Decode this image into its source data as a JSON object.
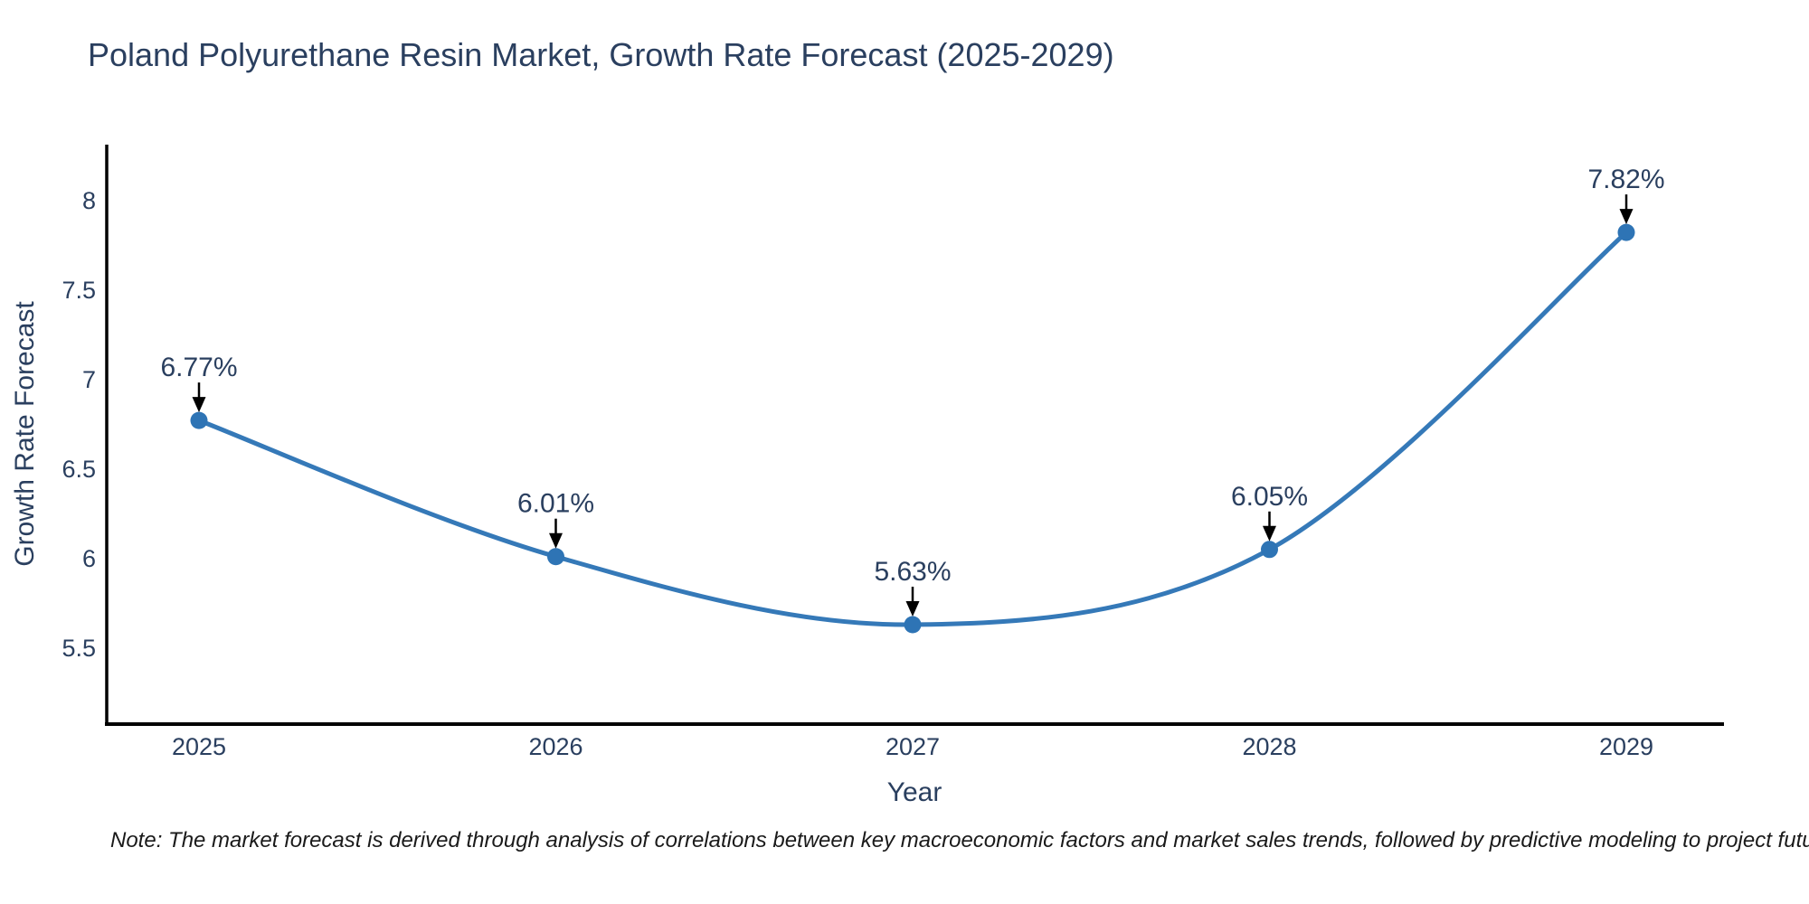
{
  "title": "Poland Polyurethane Resin Market, Growth Rate Forecast (2025-2029)",
  "note": "Note: The market forecast is derived through analysis of correlations between key macroeconomic factors and market sales trends, followed by predictive modeling to project future sales",
  "chart_data": {
    "type": "line",
    "title": "Poland Polyurethane Resin Market, Growth Rate Forecast (2025-2029)",
    "x": [
      2025,
      2026,
      2027,
      2028,
      2029
    ],
    "xticklabels": [
      "2025",
      "2026",
      "2027",
      "2028",
      "2029"
    ],
    "series": [
      {
        "name": "Growth Rate Forecast",
        "values": [
          6.77,
          6.01,
          5.63,
          6.05,
          7.82
        ]
      }
    ],
    "point_labels": [
      "6.77%",
      "6.01%",
      "5.63%",
      "6.05%",
      "7.82%"
    ],
    "xlabel": "Year",
    "ylabel": "Growth Rate Forecast",
    "yticks": [
      5.5,
      6,
      6.5,
      7,
      7.5,
      8
    ],
    "ylim": [
      5.08,
      8.31
    ],
    "grid": false,
    "legend": false,
    "line_shape": "spline",
    "colors": {
      "line": "#3579b8",
      "marker": "#2e74b5",
      "annotation_text": "#2a3f5f",
      "annotation_arrow": "#000000",
      "axis_line": "#000000",
      "tick_label": "#2a3f5f",
      "title": "#2a3f5f",
      "background": "#ffffff"
    }
  }
}
